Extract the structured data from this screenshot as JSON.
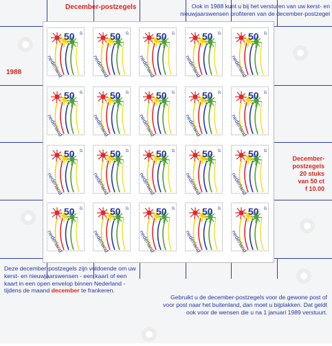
{
  "sheet": {
    "title": "December-postzegels",
    "year": "1988",
    "top_text": "Ook in 1988 kunt u bij het versturen van uw kerst- en nieuwjaarswensen profiteren van de december-postzegel",
    "side_lines": [
      "December-",
      "postzegels",
      "20 stuks",
      "van 50 ct",
      "f 10.00"
    ],
    "bottom_left": {
      "before": "Deze december-postzegels zijn voldoende om uw kerst- en nieuwjaarswensen - een kaart of een kaart in een open envelop binnen Nederland - tijdens de maand ",
      "highlight": "december",
      "after": " te frankeren."
    },
    "bottom_right": "Gebruikt u de december-postzegels voor de gewone post of voor post naar het buitenland, dan moet u bijplakken. Dat geldt ook voor de wensen die u na 1 januari 1989 verstuurt."
  },
  "stamp": {
    "denomination": "50",
    "unit": "ct",
    "country": "nederland",
    "rows": 4,
    "cols": 5,
    "colors": {
      "red": "#e8252a",
      "yellow": "#f5d800",
      "green": "#4aa334",
      "blue": "#2233a3"
    }
  },
  "colors": {
    "red_text": "#d9241d",
    "blue_text": "#2233a3",
    "gutter_line": "#2e3da0"
  }
}
